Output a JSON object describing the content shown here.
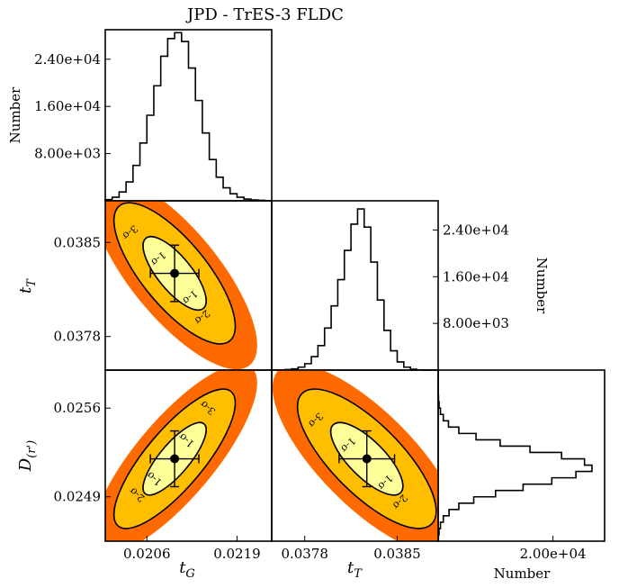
{
  "title": "JPD - TrES-3 FLDC",
  "colors": {
    "sigma3": "#ff6a00",
    "sigma2": "#ffbf00",
    "sigma1": "#ffff99",
    "contour_line": "#000000",
    "hist_line": "#000000",
    "marker": "#000000"
  },
  "chart_data": [
    {
      "id": "hist-tG",
      "type": "bar",
      "orientation": "vertical",
      "xlabel": "",
      "ylabel": "Number",
      "xlim": [
        0.02,
        0.0224
      ],
      "ylim": [
        0,
        29000
      ],
      "yticks": [
        "8.00e+03",
        "1.60e+04",
        "2.40e+04"
      ],
      "ytick_values": [
        8000,
        16000,
        24000
      ],
      "bin_edges_start": 0.02,
      "bin_width": 0.0001,
      "values": [
        200,
        600,
        1500,
        3200,
        6000,
        9800,
        14500,
        19500,
        24500,
        27500,
        28500,
        27000,
        22500,
        17000,
        11500,
        7000,
        4000,
        2200,
        1200,
        600,
        300,
        150,
        80,
        40
      ]
    },
    {
      "id": "hist-tT",
      "type": "bar",
      "orientation": "vertical",
      "xlabel": "",
      "ylabel": "Number",
      "xlim": [
        0.03755,
        0.03881
      ],
      "ylim": [
        0,
        29000
      ],
      "yticks": [
        "8.00e+03",
        "1.60e+04",
        "2.40e+04"
      ],
      "ytick_values": [
        8000,
        16000,
        24000
      ],
      "bin_edges_start": 0.03755,
      "bin_width": 5e-05,
      "values": [
        0,
        20,
        80,
        200,
        500,
        1100,
        2300,
        4200,
        7200,
        11000,
        15500,
        20500,
        25000,
        27600,
        24500,
        18500,
        12000,
        6800,
        3300,
        1400,
        500,
        150,
        40,
        10,
        0
      ]
    },
    {
      "id": "hist-D",
      "type": "bar",
      "orientation": "horizontal",
      "xlabel": "Number",
      "ylabel": "",
      "xlim": [
        0,
        29000
      ],
      "ylim": [
        0.02455,
        0.0259
      ],
      "xticks": [
        "2.00e+04"
      ],
      "xtick_values": [
        20000
      ],
      "bin_edges_start": 0.02455,
      "bin_width": 5e-05,
      "values": [
        50,
        150,
        400,
        900,
        1900,
        3600,
        6200,
        10000,
        14800,
        19800,
        24000,
        26800,
        25500,
        21500,
        16000,
        10800,
        6600,
        3600,
        1800,
        900,
        400,
        160,
        60,
        20,
        10,
        0,
        0
      ]
    },
    {
      "id": "jpd-tG-tT",
      "type": "contour",
      "xlabel": "t_G",
      "ylabel": "t_T",
      "xlim": [
        0.02,
        0.0224
      ],
      "ylim": [
        0.03755,
        0.03881
      ],
      "yticks": [
        "0.0378",
        "0.0385"
      ],
      "ytick_values": [
        0.0378,
        0.0385
      ],
      "best_fit": {
        "x": 0.021,
        "y": 0.03827,
        "xerr": 0.00035,
        "yerr": 0.00021
      },
      "correlation": -0.75,
      "levels": [
        "1-σ",
        "2-σ",
        "3-σ"
      ]
    },
    {
      "id": "jpd-tG-D",
      "type": "contour",
      "xlabel": "t_G",
      "ylabel": "D_(r')",
      "xlim": [
        0.02,
        0.0224
      ],
      "ylim": [
        0.02455,
        0.0259
      ],
      "xticks": [
        "0.0206",
        "0.0219"
      ],
      "xtick_values": [
        0.0206,
        0.0219
      ],
      "yticks": [
        "0.0249",
        "0.0256"
      ],
      "ytick_values": [
        0.0249,
        0.0256
      ],
      "best_fit": {
        "x": 0.021,
        "y": 0.0252,
        "xerr": 0.00035,
        "yerr": 0.00022
      },
      "correlation": 0.8,
      "levels": [
        "1-σ",
        "2-σ",
        "3-σ"
      ]
    },
    {
      "id": "jpd-tT-D",
      "type": "contour",
      "xlabel": "t_T",
      "ylabel": "",
      "xlim": [
        0.03755,
        0.03881
      ],
      "ylim": [
        0.02455,
        0.0259
      ],
      "xticks": [
        "0.0378",
        "0.0385"
      ],
      "xtick_values": [
        0.0378,
        0.0385
      ],
      "best_fit": {
        "x": 0.03827,
        "y": 0.0252,
        "xerr": 0.00021,
        "yerr": 0.00022
      },
      "correlation": -0.75,
      "levels": [
        "1-σ",
        "2-σ",
        "3-σ"
      ]
    }
  ]
}
